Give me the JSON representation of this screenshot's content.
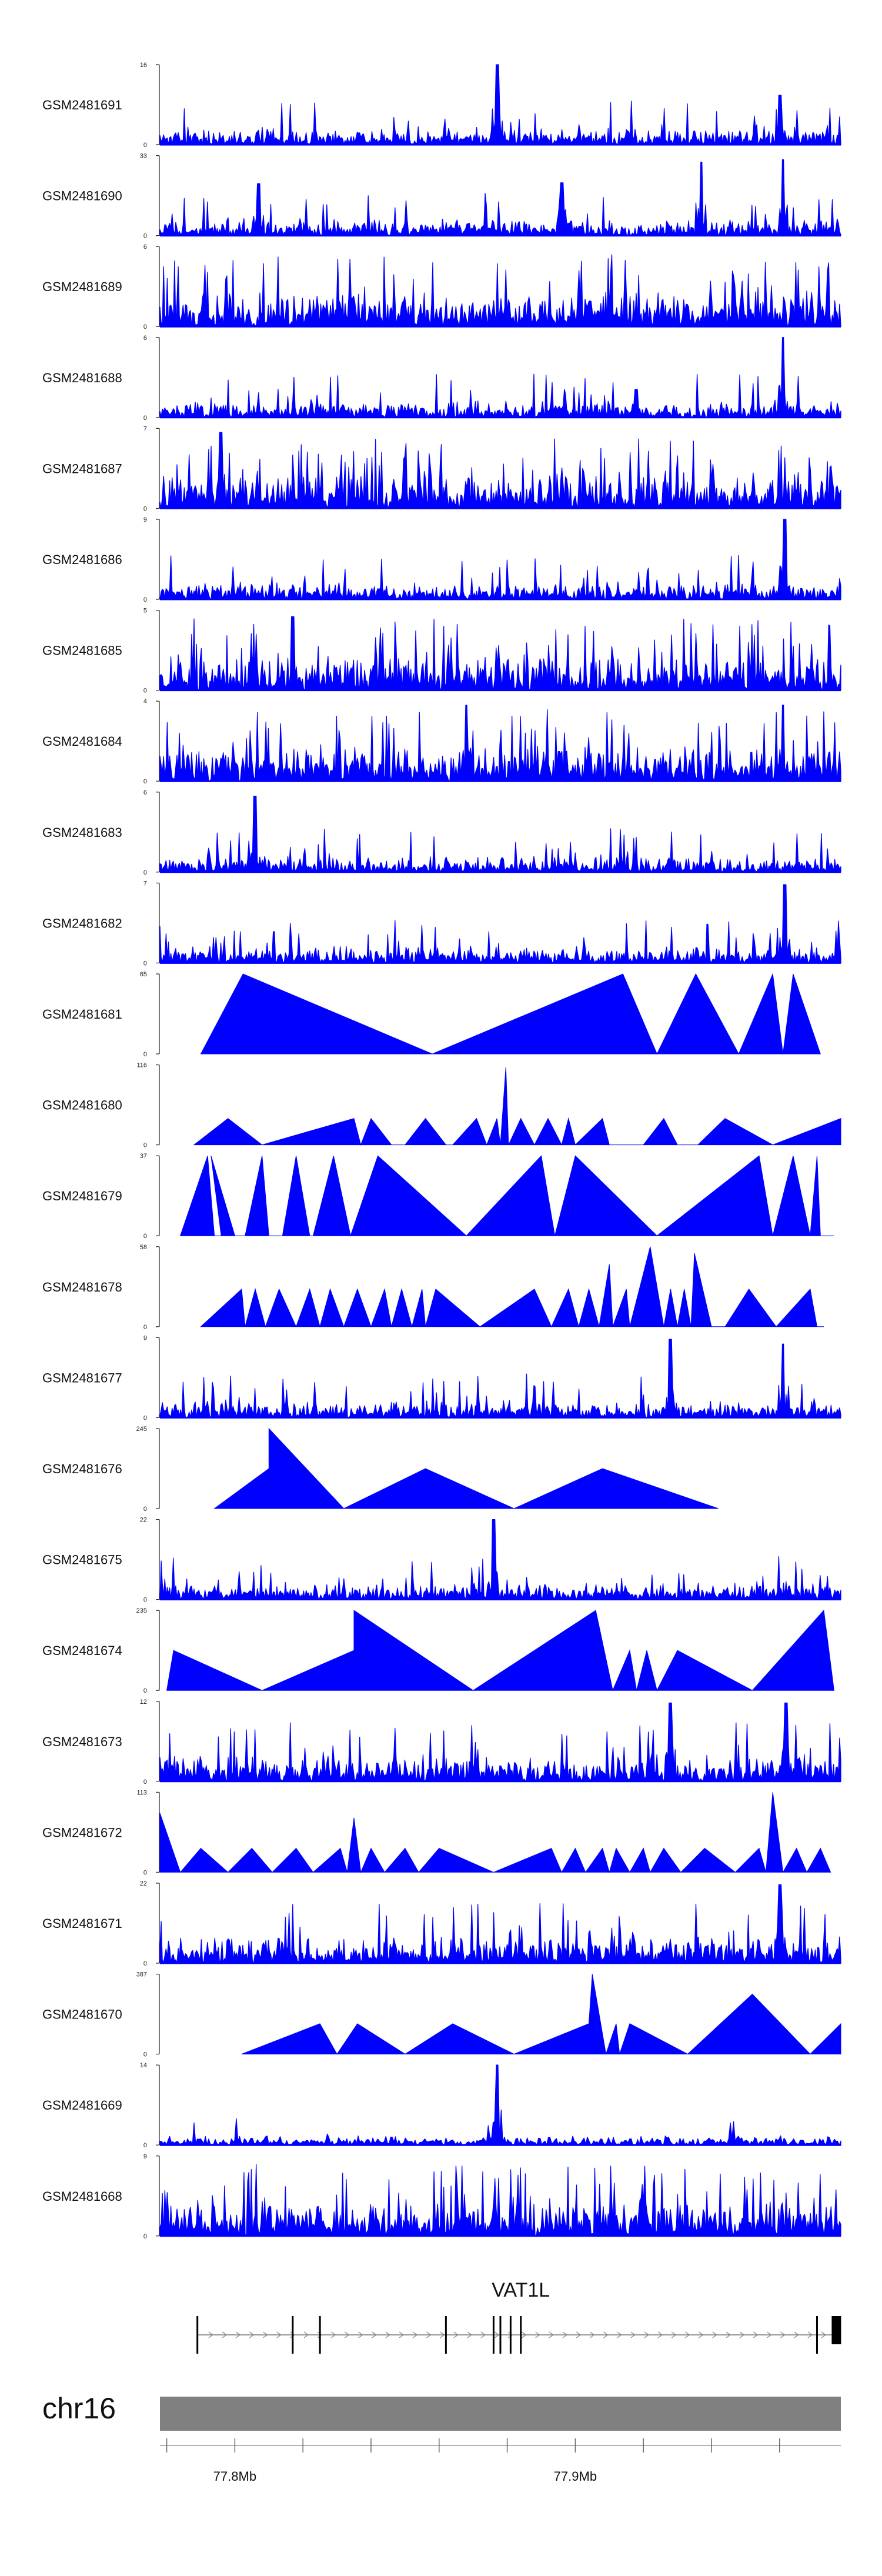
{
  "chart_data": {
    "type": "area",
    "description_style": "genome browser coverage tracks",
    "series_color": "#0000ff",
    "tracks": [
      {
        "name": "GSM2481691",
        "ymax": "16",
        "ymin": "0",
        "pattern": "dense",
        "seed": 11,
        "peaks": [
          {
            "x": 0.495,
            "h": 1.0
          },
          {
            "x": 0.91,
            "h": 0.62
          }
        ]
      },
      {
        "name": "GSM2481690",
        "ymax": "33",
        "ymin": "0",
        "pattern": "triangles",
        "seed": 12,
        "peaks": [
          {
            "x": 0.145,
            "h": 0.65
          },
          {
            "x": 0.59,
            "h": 0.66
          },
          {
            "x": 0.795,
            "h": 0.92
          },
          {
            "x": 0.915,
            "h": 0.95
          }
        ]
      },
      {
        "name": "GSM2481689",
        "ymax": "6",
        "ymin": "0",
        "pattern": "dense-tall",
        "seed": 13,
        "peaks": []
      },
      {
        "name": "GSM2481688",
        "ymax": "6",
        "ymin": "0",
        "pattern": "dense",
        "seed": 14,
        "peaks": [
          {
            "x": 0.7,
            "h": 0.35
          },
          {
            "x": 0.915,
            "h": 1.0
          }
        ]
      },
      {
        "name": "GSM2481687",
        "ymax": "7",
        "ymin": "0",
        "pattern": "dense-tall",
        "seed": 15,
        "peaks": [
          {
            "x": 0.09,
            "h": 0.95
          }
        ]
      },
      {
        "name": "GSM2481686",
        "ymax": "9",
        "ymin": "0",
        "pattern": "dense",
        "seed": 16,
        "peaks": [
          {
            "x": 0.918,
            "h": 1.0
          }
        ]
      },
      {
        "name": "GSM2481685",
        "ymax": "5",
        "ymin": "0",
        "pattern": "dense-tall",
        "seed": 17,
        "peaks": [
          {
            "x": 0.195,
            "h": 0.92
          }
        ]
      },
      {
        "name": "GSM2481684",
        "ymax": "4",
        "ymin": "0",
        "pattern": "dense-tall",
        "seed": 18,
        "peaks": [
          {
            "x": 0.45,
            "h": 0.95
          },
          {
            "x": 0.915,
            "h": 0.95
          }
        ]
      },
      {
        "name": "GSM2481683",
        "ymax": "6",
        "ymin": "0",
        "pattern": "dense",
        "seed": 19,
        "peaks": [
          {
            "x": 0.14,
            "h": 0.95
          }
        ]
      },
      {
        "name": "GSM2481682",
        "ymax": "7",
        "ymin": "0",
        "pattern": "dense",
        "seed": 20,
        "peaks": [
          {
            "x": 0.918,
            "h": 0.98
          }
        ]
      },
      {
        "name": "GSM2481681",
        "ymax": "65",
        "ymin": "0",
        "pattern": "polygon",
        "points": [
          [
            0.06,
            0
          ],
          [
            0.122,
            1.0
          ],
          [
            0.4,
            0
          ],
          [
            0.68,
            1.0
          ],
          [
            0.73,
            0
          ],
          [
            0.787,
            1.0
          ],
          [
            0.85,
            0
          ],
          [
            0.9,
            1.0
          ],
          [
            0.915,
            0
          ],
          [
            0.93,
            1.0
          ],
          [
            0.97,
            0
          ]
        ]
      },
      {
        "name": "GSM2481680",
        "ymax": "116",
        "ymin": "0",
        "pattern": "polygon",
        "points": [
          [
            0.05,
            0
          ],
          [
            0.1,
            0.33
          ],
          [
            0.15,
            0
          ],
          [
            0.285,
            0.33
          ],
          [
            0.295,
            0
          ],
          [
            0.31,
            0.33
          ],
          [
            0.34,
            0
          ],
          [
            0.36,
            0
          ],
          [
            0.39,
            0.33
          ],
          [
            0.42,
            0
          ],
          [
            0.43,
            0
          ],
          [
            0.465,
            0.33
          ],
          [
            0.48,
            0
          ],
          [
            0.495,
            0.33
          ],
          [
            0.5,
            0
          ],
          [
            0.508,
            0.97
          ],
          [
            0.512,
            0
          ],
          [
            0.53,
            0.33
          ],
          [
            0.55,
            0
          ],
          [
            0.57,
            0.33
          ],
          [
            0.59,
            0
          ],
          [
            0.6,
            0.33
          ],
          [
            0.61,
            0
          ],
          [
            0.65,
            0.33
          ],
          [
            0.66,
            0
          ],
          [
            0.71,
            0
          ],
          [
            0.74,
            0.33
          ],
          [
            0.76,
            0
          ],
          [
            0.79,
            0
          ],
          [
            0.83,
            0.33
          ],
          [
            0.9,
            0
          ],
          [
            1.0,
            0.33
          ],
          [
            1.0,
            0
          ]
        ]
      },
      {
        "name": "GSM2481679",
        "ymax": "37",
        "ymin": "0",
        "pattern": "polygon",
        "points": [
          [
            0.03,
            0
          ],
          [
            0.07,
            1.0
          ],
          [
            0.08,
            0
          ],
          [
            0.09,
            0
          ],
          [
            0.075,
            1.0
          ],
          [
            0.11,
            0
          ],
          [
            0.125,
            0
          ],
          [
            0.15,
            1.0
          ],
          [
            0.16,
            0
          ],
          [
            0.18,
            0
          ],
          [
            0.2,
            1.0
          ],
          [
            0.22,
            0
          ],
          [
            0.225,
            0
          ],
          [
            0.255,
            1.0
          ],
          [
            0.28,
            0
          ],
          [
            0.32,
            1.0
          ],
          [
            0.45,
            0
          ],
          [
            0.56,
            1.0
          ],
          [
            0.58,
            0
          ],
          [
            0.61,
            1.0
          ],
          [
            0.73,
            0
          ],
          [
            0.88,
            1.0
          ],
          [
            0.9,
            0
          ],
          [
            0.93,
            1.0
          ],
          [
            0.955,
            0
          ],
          [
            0.965,
            1.0
          ],
          [
            0.97,
            0
          ],
          [
            0.99,
            0
          ]
        ]
      },
      {
        "name": "GSM2481678",
        "ymax": "58",
        "ymin": "0",
        "pattern": "polygon",
        "points": [
          [
            0.06,
            0
          ],
          [
            0.12,
            0.47
          ],
          [
            0.125,
            0
          ],
          [
            0.14,
            0.47
          ],
          [
            0.155,
            0
          ],
          [
            0.175,
            0.47
          ],
          [
            0.2,
            0
          ],
          [
            0.22,
            0.47
          ],
          [
            0.235,
            0
          ],
          [
            0.25,
            0.47
          ],
          [
            0.27,
            0
          ],
          [
            0.29,
            0.47
          ],
          [
            0.31,
            0
          ],
          [
            0.33,
            0.47
          ],
          [
            0.34,
            0
          ],
          [
            0.355,
            0.47
          ],
          [
            0.37,
            0
          ],
          [
            0.385,
            0.47
          ],
          [
            0.39,
            0
          ],
          [
            0.405,
            0.47
          ],
          [
            0.47,
            0
          ],
          [
            0.55,
            0.47
          ],
          [
            0.575,
            0
          ],
          [
            0.6,
            0.47
          ],
          [
            0.615,
            0
          ],
          [
            0.63,
            0.47
          ],
          [
            0.645,
            0
          ],
          [
            0.66,
            0.78
          ],
          [
            0.665,
            0
          ],
          [
            0.685,
            0.47
          ],
          [
            0.69,
            0
          ],
          [
            0.72,
            1.0
          ],
          [
            0.74,
            0
          ],
          [
            0.75,
            0.47
          ],
          [
            0.76,
            0
          ],
          [
            0.77,
            0.47
          ],
          [
            0.78,
            0
          ],
          [
            0.785,
            0.92
          ],
          [
            0.81,
            0
          ],
          [
            0.83,
            0
          ],
          [
            0.865,
            0.47
          ],
          [
            0.905,
            0
          ],
          [
            0.955,
            0.47
          ],
          [
            0.965,
            0
          ],
          [
            0.975,
            0
          ]
        ]
      },
      {
        "name": "GSM2481677",
        "ymax": "9",
        "ymin": "0",
        "pattern": "dense",
        "seed": 21,
        "peaks": [
          {
            "x": 0.75,
            "h": 0.98
          },
          {
            "x": 0.915,
            "h": 0.92
          }
        ]
      },
      {
        "name": "GSM2481676",
        "ymax": "245",
        "ymin": "0",
        "pattern": "polygon",
        "points": [
          [
            0.08,
            0
          ],
          [
            0.16,
            0.5
          ],
          [
            0.16,
            1.0
          ],
          [
            0.27,
            0
          ],
          [
            0.39,
            0.5
          ],
          [
            0.52,
            0
          ],
          [
            0.65,
            0.5
          ],
          [
            0.82,
            0
          ]
        ]
      },
      {
        "name": "GSM2481675",
        "ymax": "22",
        "ymin": "0",
        "pattern": "dense",
        "seed": 22,
        "peaks": [
          {
            "x": 0.49,
            "h": 1.0
          }
        ]
      },
      {
        "name": "GSM2481674",
        "ymax": "235",
        "ymin": "0",
        "pattern": "polygon",
        "points": [
          [
            0.01,
            0
          ],
          [
            0.02,
            0.5
          ],
          [
            0.15,
            0
          ],
          [
            0.285,
            0.5
          ],
          [
            0.285,
            1.0
          ],
          [
            0.46,
            0
          ],
          [
            0.64,
            1.0
          ],
          [
            0.665,
            0
          ],
          [
            0.69,
            0.5
          ],
          [
            0.7,
            0
          ],
          [
            0.715,
            0.5
          ],
          [
            0.73,
            0
          ],
          [
            0.76,
            0.5
          ],
          [
            0.87,
            0
          ],
          [
            0.975,
            1.0
          ],
          [
            0.99,
            0
          ]
        ]
      },
      {
        "name": "GSM2481673",
        "ymax": "12",
        "ymin": "0",
        "pattern": "spiky",
        "seed": 23,
        "peaks": [
          {
            "x": 0.75,
            "h": 0.98
          },
          {
            "x": 0.92,
            "h": 0.98
          }
        ]
      },
      {
        "name": "GSM2481672",
        "ymax": "113",
        "ymin": "0",
        "pattern": "polygon",
        "points": [
          [
            0.0,
            0
          ],
          [
            0.0,
            0.74
          ],
          [
            0.03,
            0
          ],
          [
            0.06,
            0.3
          ],
          [
            0.1,
            0
          ],
          [
            0.135,
            0.3
          ],
          [
            0.165,
            0
          ],
          [
            0.2,
            0.3
          ],
          [
            0.225,
            0
          ],
          [
            0.265,
            0.3
          ],
          [
            0.275,
            0
          ],
          [
            0.285,
            0.68
          ],
          [
            0.295,
            0
          ],
          [
            0.31,
            0.3
          ],
          [
            0.33,
            0
          ],
          [
            0.36,
            0.3
          ],
          [
            0.38,
            0
          ],
          [
            0.41,
            0.3
          ],
          [
            0.49,
            0
          ],
          [
            0.575,
            0.3
          ],
          [
            0.59,
            0
          ],
          [
            0.61,
            0.3
          ],
          [
            0.625,
            0
          ],
          [
            0.65,
            0.3
          ],
          [
            0.66,
            0
          ],
          [
            0.67,
            0.3
          ],
          [
            0.69,
            0
          ],
          [
            0.71,
            0.3
          ],
          [
            0.72,
            0
          ],
          [
            0.74,
            0.3
          ],
          [
            0.765,
            0
          ],
          [
            0.8,
            0.3
          ],
          [
            0.845,
            0
          ],
          [
            0.88,
            0.3
          ],
          [
            0.89,
            0
          ],
          [
            0.9,
            1.0
          ],
          [
            0.915,
            0
          ],
          [
            0.935,
            0.3
          ],
          [
            0.95,
            0
          ],
          [
            0.97,
            0.3
          ],
          [
            0.985,
            0
          ]
        ]
      },
      {
        "name": "GSM2481671",
        "ymax": "22",
        "ymin": "0",
        "pattern": "spiky",
        "seed": 24,
        "peaks": [
          {
            "x": 0.91,
            "h": 0.98
          }
        ]
      },
      {
        "name": "GSM2481670",
        "ymax": "387",
        "ymin": "0",
        "pattern": "polygon",
        "points": [
          [
            0.12,
            0
          ],
          [
            0.235,
            0.38
          ],
          [
            0.26,
            0
          ],
          [
            0.29,
            0.38
          ],
          [
            0.36,
            0
          ],
          [
            0.43,
            0.38
          ],
          [
            0.52,
            0
          ],
          [
            0.63,
            0.38
          ],
          [
            0.635,
            1.0
          ],
          [
            0.655,
            0
          ],
          [
            0.67,
            0.38
          ],
          [
            0.675,
            0
          ],
          [
            0.69,
            0.38
          ],
          [
            0.775,
            0
          ],
          [
            0.87,
            0.75
          ],
          [
            0.955,
            0
          ],
          [
            1.0,
            0.38
          ],
          [
            1.0,
            0
          ]
        ]
      },
      {
        "name": "GSM2481669",
        "ymax": "14",
        "ymin": "0",
        "pattern": "sparse",
        "seed": 25,
        "peaks": [
          {
            "x": 0.495,
            "h": 1.0
          }
        ]
      },
      {
        "name": "GSM2481668",
        "ymax": "9",
        "ymin": "0",
        "pattern": "dense-tall",
        "seed": 26,
        "peaks": []
      }
    ],
    "gene_track": {
      "gene": "VAT1L",
      "start": 0.055,
      "end": 0.99,
      "exons": [
        0.055,
        0.195,
        0.235,
        0.42,
        0.49,
        0.5,
        0.515,
        0.53,
        0.965,
        0.99
      ]
    },
    "ideogram": {
      "chromosome": "chr16",
      "ticks": [
        0.01,
        0.11,
        0.21,
        0.31,
        0.41,
        0.51,
        0.61,
        0.71,
        0.81,
        0.91
      ],
      "tick_labels": [
        {
          "pos": 0.11,
          "text": "77.8Mb"
        },
        {
          "pos": 0.61,
          "text": "77.9Mb"
        }
      ]
    }
  }
}
